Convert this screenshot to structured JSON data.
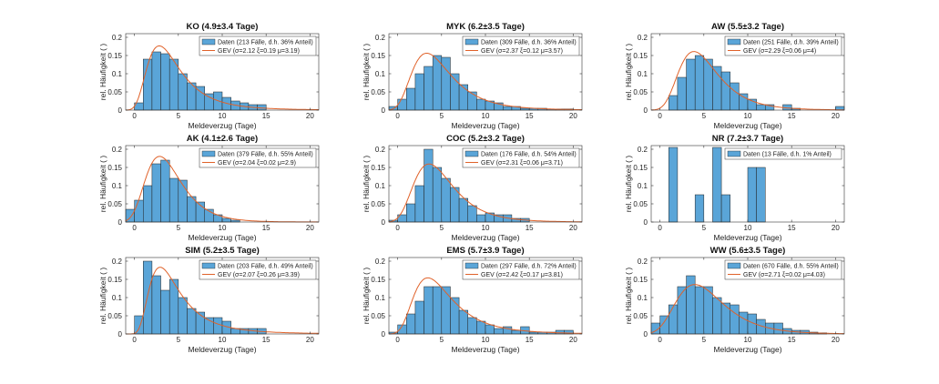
{
  "colors": {
    "bar_fill": "#5aa5d8",
    "bar_edge": "#222222",
    "gev_line": "#e0622a",
    "axis": "#333333"
  },
  "chart_data": [
    {
      "type": "bar",
      "title": "KO (4.9±3.4 Tage)",
      "xlabel": "Meldeverzug (Tage)",
      "ylabel": "rel. Häufigkeit ( )",
      "xlim": [
        -1,
        21
      ],
      "ylim": [
        0,
        0.21
      ],
      "xticks": [
        "0",
        "5",
        "10",
        "15",
        "20"
      ],
      "yticks": [
        "0",
        "0.05",
        "0.1",
        "0.15",
        "0.2"
      ],
      "legend": {
        "bars": "Daten (213 Fälle, d.h. 36% Anteil)",
        "line": "GEV (σ=2.12 ξ=0.19 μ=3.19)"
      },
      "bins": [
        0,
        1,
        2,
        3,
        4,
        5,
        6,
        7,
        8,
        9,
        10,
        11,
        12,
        13,
        14
      ],
      "values": [
        0.02,
        0.14,
        0.16,
        0.155,
        0.14,
        0.1,
        0.075,
        0.065,
        0.045,
        0.05,
        0.035,
        0.025,
        0.02,
        0.015,
        0.015
      ],
      "gev": {
        "sigma": 2.12,
        "xi": 0.19,
        "mu": 3.19
      }
    },
    {
      "type": "bar",
      "title": "MYK (6.2±3.5 Tage)",
      "xlabel": "Meldeverzug (Tage)",
      "ylabel": "rel. Häufigkeit ( )",
      "xlim": [
        -1,
        21
      ],
      "ylim": [
        0,
        0.21
      ],
      "xticks": [
        "0",
        "5",
        "10",
        "15",
        "20"
      ],
      "yticks": [
        "0",
        "0.05",
        "0.1",
        "0.15",
        "0.2"
      ],
      "legend": {
        "bars": "Daten (309 Fälle, d.h. 36% Anteil)",
        "line": "GEV (σ=2.37 ξ=0.12 μ=3.57)"
      },
      "bins": [
        -1,
        0,
        1,
        2,
        3,
        4,
        5,
        6,
        7,
        8,
        9,
        10,
        11,
        12,
        13,
        14,
        15,
        16,
        17,
        18,
        19
      ],
      "values": [
        0.01,
        0.03,
        0.06,
        0.1,
        0.12,
        0.15,
        0.145,
        0.1,
        0.07,
        0.05,
        0.03,
        0.025,
        0.02,
        0.01,
        0.01,
        0.005,
        0.005,
        0.005,
        0.003,
        0.003,
        0.003
      ],
      "gev": {
        "sigma": 2.37,
        "xi": 0.12,
        "mu": 3.57
      }
    },
    {
      "type": "bar",
      "title": "AW (5.5±3.2 Tage)",
      "xlabel": "Meldeverzug (Tage)",
      "ylabel": "rel. Häufigkeit ( )",
      "xlim": [
        -1,
        21
      ],
      "ylim": [
        0,
        0.21
      ],
      "xticks": [
        "0",
        "5",
        "10",
        "15",
        "20"
      ],
      "yticks": [
        "0",
        "0.05",
        "0.1",
        "0.15",
        "0.2"
      ],
      "legend": {
        "bars": "Daten (251 Fälle, d.h. 39% Anteil)",
        "line": "GEV (σ=2.29 ξ=0.06 μ=4)"
      },
      "bins": [
        1,
        2,
        3,
        4,
        5,
        6,
        7,
        8,
        9,
        10,
        11,
        12,
        13,
        14,
        15,
        16,
        17,
        18,
        19,
        20
      ],
      "values": [
        0.04,
        0.09,
        0.14,
        0.15,
        0.14,
        0.12,
        0.105,
        0.075,
        0.045,
        0.03,
        0.015,
        0.015,
        0.0,
        0.015,
        0.005,
        0.0,
        0.0,
        0.0,
        0.0,
        0.01
      ],
      "gev": {
        "sigma": 2.29,
        "xi": 0.06,
        "mu": 4
      }
    },
    {
      "type": "bar",
      "title": "AK (4.1±2.6 Tage)",
      "xlabel": "Meldeverzug (Tage)",
      "ylabel": "rel. Häufigkeit ( )",
      "xlim": [
        -1,
        21
      ],
      "ylim": [
        0,
        0.21
      ],
      "xticks": [
        "0",
        "5",
        "10",
        "15",
        "20"
      ],
      "yticks": [
        "0",
        "0.05",
        "0.1",
        "0.15",
        "0.2"
      ],
      "legend": {
        "bars": "Daten (379 Fälle, d.h. 55% Anteil)",
        "line": "GEV (σ=2.04 ξ=0.02 μ=2.9)"
      },
      "bins": [
        -1,
        0,
        1,
        2,
        3,
        4,
        5,
        6,
        7,
        8,
        9,
        10,
        11
      ],
      "values": [
        0.035,
        0.06,
        0.1,
        0.16,
        0.17,
        0.12,
        0.115,
        0.07,
        0.055,
        0.035,
        0.02,
        0.01,
        0.005
      ],
      "gev": {
        "sigma": 2.04,
        "xi": 0.02,
        "mu": 2.9
      }
    },
    {
      "type": "bar",
      "title": "COC (5.2±3.2 Tage)",
      "xlabel": "Meldeverzug (Tage)",
      "ylabel": "rel. Häufigkeit ( )",
      "xlim": [
        -1,
        21
      ],
      "ylim": [
        0,
        0.21
      ],
      "xticks": [
        "0",
        "5",
        "10",
        "15",
        "20"
      ],
      "yticks": [
        "0",
        "0.05",
        "0.1",
        "0.15",
        "0.2"
      ],
      "legend": {
        "bars": "Daten (176 Fälle, d.h. 54% Anteil)",
        "line": "GEV (σ=2.31 ξ=0.06 μ=3.71)"
      },
      "bins": [
        -1,
        0,
        1,
        2,
        3,
        4,
        5,
        6,
        7,
        8,
        9,
        10,
        11,
        12,
        13,
        14
      ],
      "values": [
        0.005,
        0.02,
        0.05,
        0.1,
        0.2,
        0.15,
        0.12,
        0.095,
        0.065,
        0.045,
        0.02,
        0.025,
        0.02,
        0.02,
        0.01,
        0.01
      ],
      "gev": {
        "sigma": 2.31,
        "xi": 0.06,
        "mu": 3.71
      }
    },
    {
      "type": "bar",
      "title": "NR (7.2±3.7 Tage)",
      "xlabel": "Meldeverzug (Tage)",
      "ylabel": "rel. Häufigkeit ( )",
      "xlim": [
        -1,
        21
      ],
      "ylim": [
        0,
        0.21
      ],
      "xticks": [
        "0",
        "5",
        "10",
        "15",
        "20"
      ],
      "yticks": [
        "0",
        "0.05",
        "0.1",
        "0.15",
        "0.2"
      ],
      "legend": {
        "bars": "Daten (13 Fälle, d.h. 1% Anteil)"
      },
      "bins": [
        1,
        4,
        6,
        7,
        10,
        11
      ],
      "values": [
        0.205,
        0.075,
        0.205,
        0.075,
        0.15,
        0.15
      ],
      "gev": null
    },
    {
      "type": "bar",
      "title": "SIM (5.2±3.5 Tage)",
      "xlabel": "Meldeverzug (Tage)",
      "ylabel": "rel. Häufigkeit ( )",
      "xlim": [
        -1,
        21
      ],
      "ylim": [
        0,
        0.21
      ],
      "xticks": [
        "0",
        "5",
        "10",
        "15",
        "20"
      ],
      "yticks": [
        "0",
        "0.05",
        "0.1",
        "0.15",
        "0.2"
      ],
      "legend": {
        "bars": "Daten (203 Fälle, d.h. 49% Anteil)",
        "line": "GEV (σ=2.07 ξ=0.26 μ=3.39)"
      },
      "bins": [
        0,
        1,
        2,
        3,
        4,
        5,
        6,
        7,
        8,
        9,
        10,
        11,
        12,
        13,
        14
      ],
      "values": [
        0.05,
        0.2,
        0.16,
        0.12,
        0.15,
        0.1,
        0.07,
        0.06,
        0.045,
        0.045,
        0.035,
        0.015,
        0.015,
        0.015,
        0.015
      ],
      "gev": {
        "sigma": 2.07,
        "xi": 0.26,
        "mu": 3.39
      }
    },
    {
      "type": "bar",
      "title": "EMS (5.7±3.9 Tage)",
      "xlabel": "Meldeverzug (Tage)",
      "ylabel": "rel. Häufigkeit ( )",
      "xlim": [
        -1,
        21
      ],
      "ylim": [
        0,
        0.21
      ],
      "xticks": [
        "0",
        "5",
        "10",
        "15",
        "20"
      ],
      "yticks": [
        "0",
        "0.05",
        "0.1",
        "0.15",
        "0.2"
      ],
      "legend": {
        "bars": "Daten (297 Fälle, d.h. 72% Anteil)",
        "line": "GEV (σ=2.42 ξ=0.17 μ=3.81)"
      },
      "bins": [
        -1,
        0,
        1,
        2,
        3,
        4,
        5,
        6,
        7,
        8,
        9,
        10,
        11,
        12,
        13,
        14,
        15,
        16,
        17,
        18,
        19
      ],
      "values": [
        0.005,
        0.025,
        0.055,
        0.09,
        0.13,
        0.13,
        0.13,
        0.1,
        0.065,
        0.045,
        0.035,
        0.025,
        0.015,
        0.02,
        0.01,
        0.02,
        0.005,
        0.005,
        0.005,
        0.01,
        0.01
      ],
      "gev": {
        "sigma": 2.42,
        "xi": 0.17,
        "mu": 3.81
      }
    },
    {
      "type": "bar",
      "title": "WW (5.6±3.5 Tage)",
      "xlabel": "Meldeverzug (Tage)",
      "ylabel": "rel. Häufigkeit ( )",
      "xlim": [
        -1,
        21
      ],
      "ylim": [
        0,
        0.21
      ],
      "xticks": [
        "0",
        "5",
        "10",
        "15",
        "20"
      ],
      "yticks": [
        "0",
        "0.05",
        "0.1",
        "0.15",
        "0.2"
      ],
      "legend": {
        "bars": "Daten (670 Fälle, d.h. 55% Anteil)",
        "line": "GEV (σ=2.71 ξ=0.02 μ=4.03)"
      },
      "bins": [
        -1,
        0,
        1,
        2,
        3,
        4,
        5,
        6,
        7,
        8,
        9,
        10,
        11,
        12,
        13,
        14,
        15,
        16,
        17,
        18
      ],
      "values": [
        0.03,
        0.05,
        0.08,
        0.13,
        0.16,
        0.13,
        0.13,
        0.1,
        0.085,
        0.08,
        0.06,
        0.055,
        0.04,
        0.03,
        0.03,
        0.015,
        0.01,
        0.01,
        0.005,
        0.003
      ],
      "gev": {
        "sigma": 2.71,
        "xi": 0.02,
        "mu": 4.03
      }
    }
  ]
}
